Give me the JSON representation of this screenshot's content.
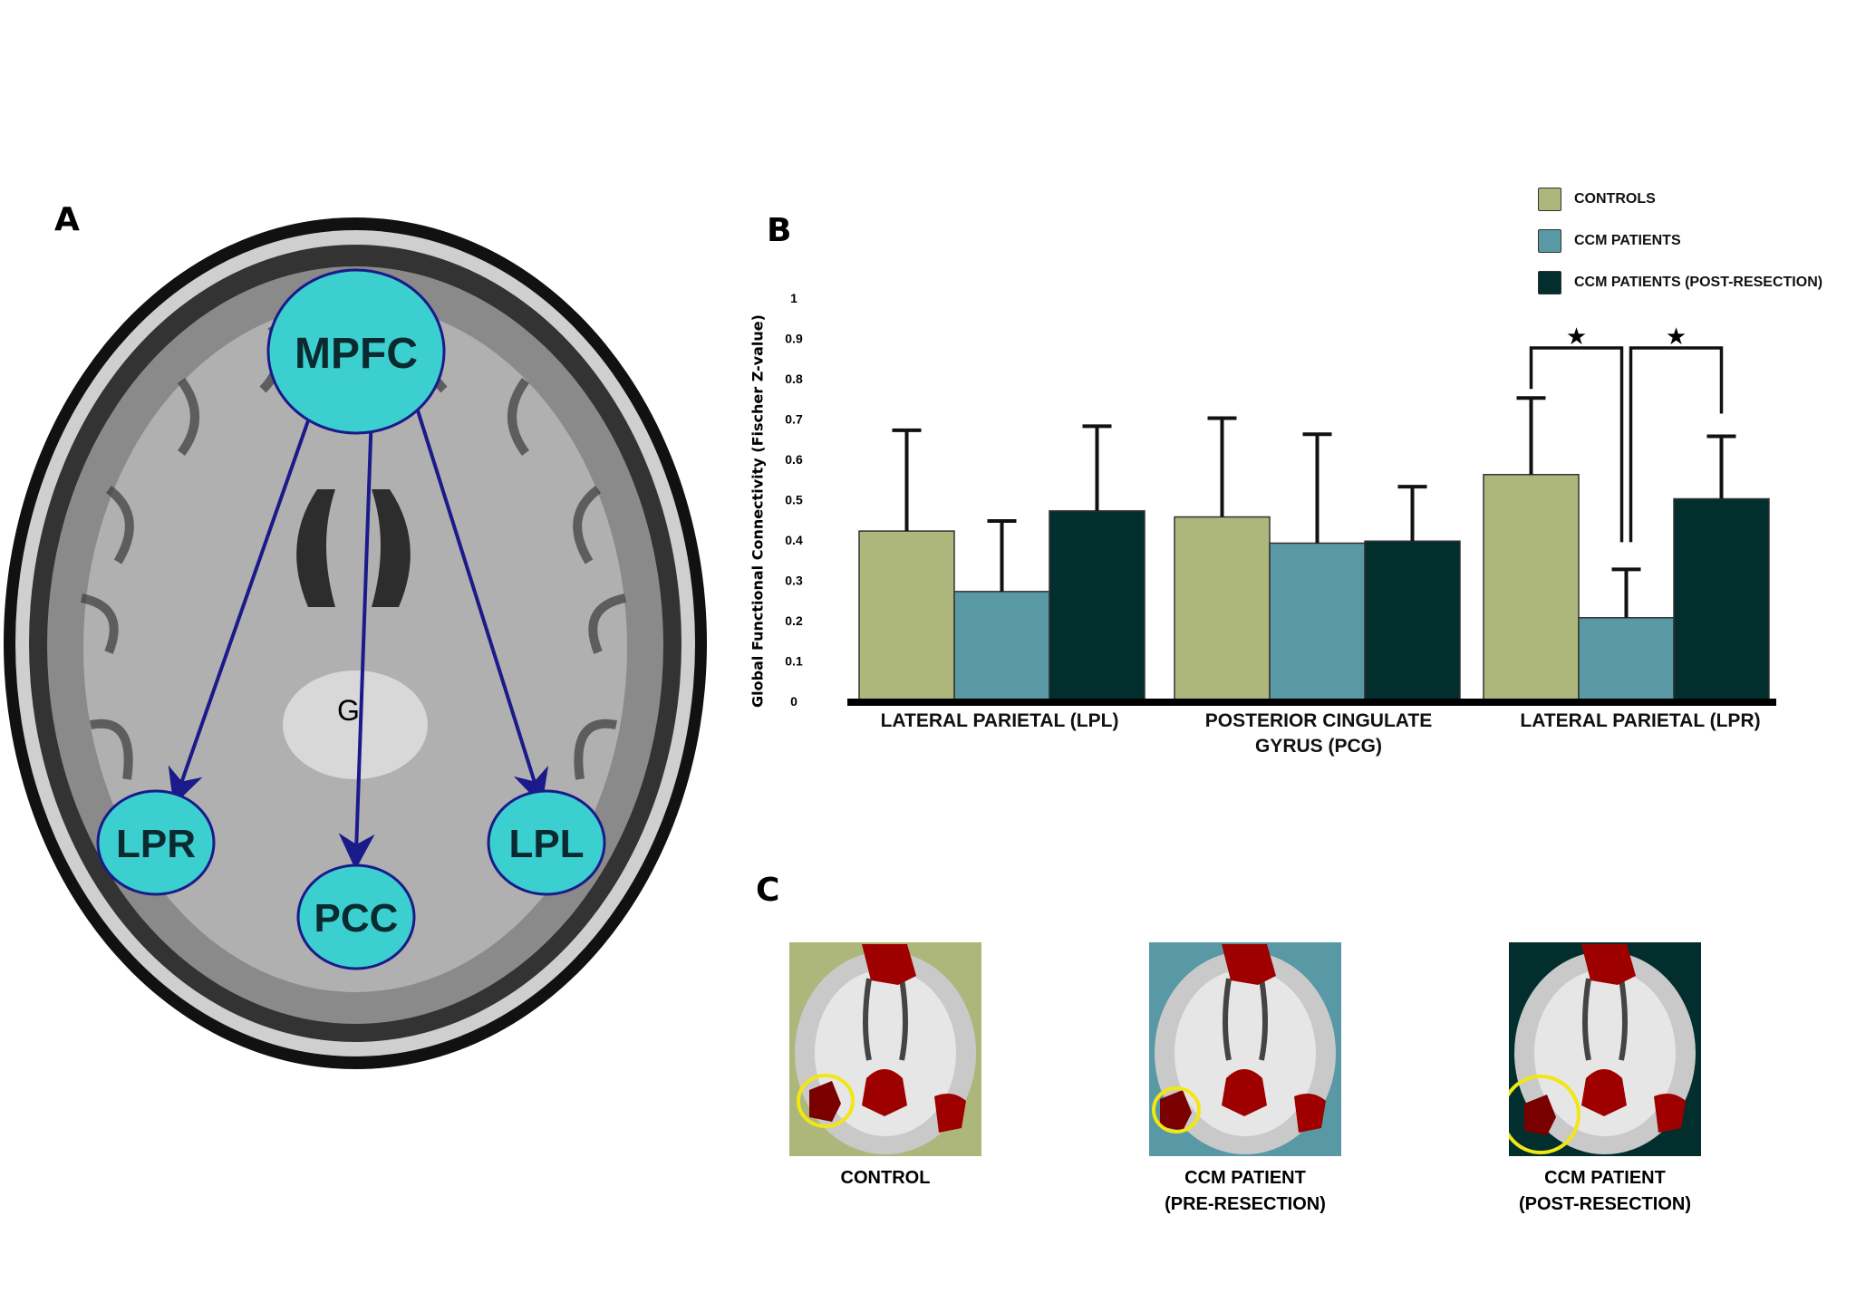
{
  "panel_labels": {
    "a": "A",
    "b": "B",
    "c": "C"
  },
  "panel_a": {
    "nodes": [
      "MPFC",
      "LPR",
      "PCC",
      "LPL"
    ],
    "marker": "G",
    "node_color": "#3ccfcf",
    "arrow_color": "#1a1a8a"
  },
  "chart_data": {
    "type": "bar",
    "ylabel": "Global Functional Connectivity (Fischer Z-value)",
    "xlabel": "",
    "ylim": [
      0,
      1
    ],
    "yticks": [
      "0",
      "0.1",
      "0.2",
      "0.3",
      "0.4",
      "0.5",
      "0.6",
      "0.7",
      "0.8",
      "0.9",
      "1"
    ],
    "categories": [
      "LATERAL PARIETAL (LPL)",
      "POSTERIOR CINGULATE GYRUS (PCG)",
      "LATERAL PARIETAL (LPR)"
    ],
    "category_lines": [
      [
        "LATERAL PARIETAL (LPL)"
      ],
      [
        "POSTERIOR CINGULATE",
        "GYRUS (PCG)"
      ],
      [
        "LATERAL PARIETAL (LPR)"
      ]
    ],
    "series": [
      {
        "name": "CONTROLS",
        "color": "#adb77c",
        "values": [
          0.42,
          0.455,
          0.56
        ],
        "error_upper": [
          0.67,
          0.7,
          0.75
        ]
      },
      {
        "name": "CCM PATIENTS",
        "color": "#5899a5",
        "values": [
          0.27,
          0.39,
          0.205
        ],
        "error_upper": [
          0.445,
          0.66,
          0.325
        ]
      },
      {
        "name": "CCM PATIENTS (POST-RESECTION)",
        "color": "#022e2e",
        "values": [
          0.47,
          0.395,
          0.5
        ],
        "error_upper": [
          0.68,
          0.53,
          0.655
        ]
      }
    ],
    "significance": [
      {
        "category": "LATERAL PARIETAL (LPR)",
        "between": [
          "CONTROLS",
          "CCM PATIENTS"
        ],
        "marker": "★"
      },
      {
        "category": "LATERAL PARIETAL (LPR)",
        "between": [
          "CCM PATIENTS",
          "CCM PATIENTS (POST-RESECTION)"
        ],
        "marker": "★"
      }
    ],
    "legend_position": "top-right",
    "grid": false
  },
  "panel_c": {
    "scans": [
      {
        "caption": [
          "CONTROL"
        ],
        "bg": "#adb77c"
      },
      {
        "caption": [
          "CCM PATIENT",
          "(PRE-RESECTION)"
        ],
        "bg": "#5899a5"
      },
      {
        "caption": [
          "CCM PATIENT",
          "(POST-RESECTION)"
        ],
        "bg": "#022e2e"
      }
    ],
    "highlight_color": "#f2e614",
    "activation_color": "#9e0000"
  }
}
